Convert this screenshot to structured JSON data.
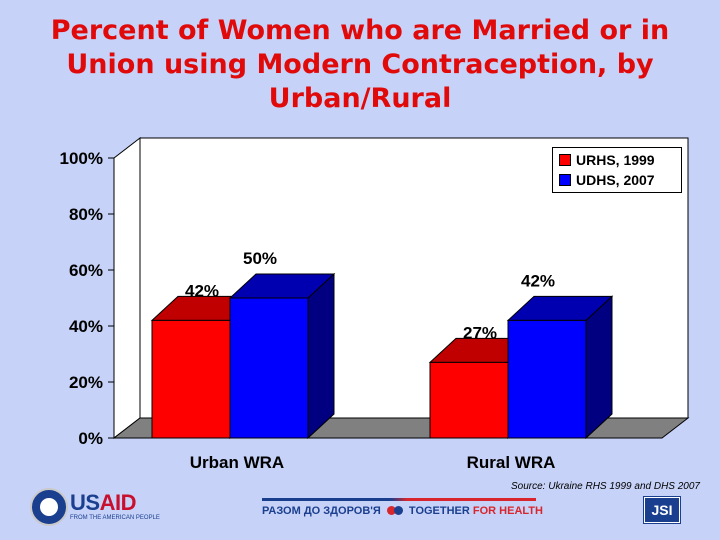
{
  "slide": {
    "title_line1": "Percent of Women who are Married or in",
    "title_line2": "Union using Modern Contraception, by",
    "title_line3": "Urban/Rural",
    "source": "Source: Ukraine RHS 1999 and DHS 2007"
  },
  "chart_data": {
    "type": "bar",
    "categories": [
      "Urban WRA",
      "Rural WRA"
    ],
    "series": [
      {
        "name": "URHS, 1999",
        "values": [
          42,
          27
        ],
        "labels": [
          "42%",
          "27%"
        ],
        "color": "#ff0000",
        "top_color": "#c00000",
        "side_color": "#a00000"
      },
      {
        "name": "UDHS, 2007",
        "values": [
          50,
          42
        ],
        "labels": [
          "50%",
          "42%"
        ],
        "color": "#0000ff",
        "top_color": "#0000b0",
        "side_color": "#000080"
      }
    ],
    "yticks": [
      "0%",
      "20%",
      "40%",
      "60%",
      "80%",
      "100%"
    ],
    "ylim": [
      0,
      100
    ],
    "grid": false,
    "legend": "top-right",
    "style": "3d"
  },
  "footer": {
    "usaid_us": "US",
    "usaid_aid": "AID",
    "usaid_tagline": "FROM THE AMERICAN PEOPLE",
    "banner_left": "РАЗОМ ДО ЗДОРОВ'Я",
    "banner_right_1": "TOGETHER",
    "banner_right_2": "FOR HEALTH",
    "jsi": "JSI"
  }
}
